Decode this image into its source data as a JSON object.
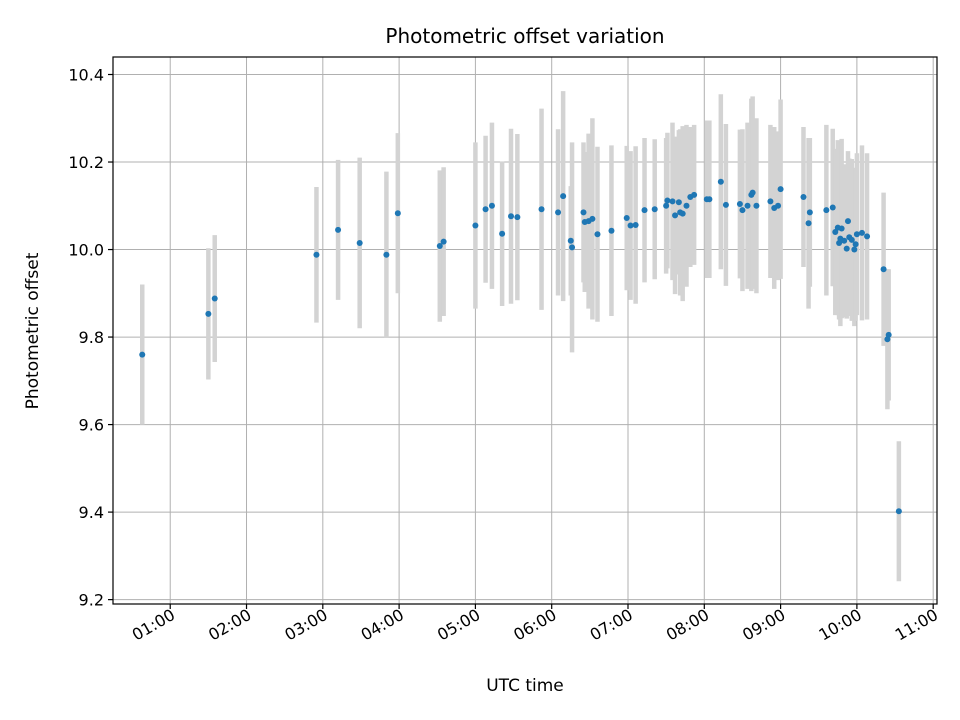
{
  "chart_data": {
    "type": "scatter",
    "title": "Photometric offset variation",
    "xlabel": "UTC time",
    "ylabel": "Photometric offset",
    "x_unit": "UTC time (HH:MM)",
    "xlim": [
      "00:15",
      "11:03"
    ],
    "ylim": [
      9.19,
      10.44
    ],
    "x_ticks": [
      "01:00",
      "02:00",
      "03:00",
      "04:00",
      "05:00",
      "06:00",
      "07:00",
      "08:00",
      "09:00",
      "10:00",
      "11:00"
    ],
    "y_ticks": [
      "9.2",
      "9.4",
      "9.6",
      "9.8",
      "10.0",
      "10.2",
      "10.4"
    ],
    "grid": true,
    "legend": "none",
    "colors": {
      "point": "#1f77b4",
      "errorbar": "#d3d3d3",
      "grid": "#b0b0b0"
    },
    "points": [
      {
        "t": "00:38",
        "y": 9.76,
        "err": 0.16
      },
      {
        "t": "01:30",
        "y": 9.853,
        "err": 0.15
      },
      {
        "t": "01:35",
        "y": 9.888,
        "err": 0.145
      },
      {
        "t": "02:55",
        "y": 9.988,
        "err": 0.155
      },
      {
        "t": "03:12",
        "y": 10.045,
        "err": 0.16
      },
      {
        "t": "03:29",
        "y": 10.015,
        "err": 0.195
      },
      {
        "t": "03:50",
        "y": 9.988,
        "err": 0.19
      },
      {
        "t": "03:59",
        "y": 10.083,
        "err": 0.183
      },
      {
        "t": "04:32",
        "y": 10.008,
        "err": 0.173
      },
      {
        "t": "04:35",
        "y": 10.018,
        "err": 0.17
      },
      {
        "t": "05:00",
        "y": 10.055,
        "err": 0.19
      },
      {
        "t": "05:08",
        "y": 10.092,
        "err": 0.168
      },
      {
        "t": "05:13",
        "y": 10.1,
        "err": 0.19
      },
      {
        "t": "05:21",
        "y": 10.036,
        "err": 0.165
      },
      {
        "t": "05:28",
        "y": 10.076,
        "err": 0.2
      },
      {
        "t": "05:33",
        "y": 10.074,
        "err": 0.19
      },
      {
        "t": "05:52",
        "y": 10.092,
        "err": 0.23
      },
      {
        "t": "06:05",
        "y": 10.085,
        "err": 0.19
      },
      {
        "t": "06:09",
        "y": 10.122,
        "err": 0.24
      },
      {
        "t": "06:15",
        "y": 10.02,
        "err": 0.125
      },
      {
        "t": "06:16",
        "y": 10.005,
        "err": 0.24
      },
      {
        "t": "06:25",
        "y": 10.085,
        "err": 0.16
      },
      {
        "t": "06:26",
        "y": 10.063,
        "err": 0.16
      },
      {
        "t": "06:29",
        "y": 10.065,
        "err": 0.2
      },
      {
        "t": "06:32",
        "y": 10.07,
        "err": 0.23
      },
      {
        "t": "06:36",
        "y": 10.035,
        "err": 0.2
      },
      {
        "t": "06:47",
        "y": 10.043,
        "err": 0.195
      },
      {
        "t": "06:59",
        "y": 10.072,
        "err": 0.165
      },
      {
        "t": "07:02",
        "y": 10.055,
        "err": 0.17
      },
      {
        "t": "07:06",
        "y": 10.056,
        "err": 0.18
      },
      {
        "t": "07:13",
        "y": 10.09,
        "err": 0.165
      },
      {
        "t": "07:21",
        "y": 10.092,
        "err": 0.16
      },
      {
        "t": "07:30",
        "y": 10.1,
        "err": 0.155
      },
      {
        "t": "07:31",
        "y": 10.112,
        "err": 0.155
      },
      {
        "t": "07:35",
        "y": 10.11,
        "err": 0.18
      },
      {
        "t": "07:37",
        "y": 10.078,
        "err": 0.18
      },
      {
        "t": "07:40",
        "y": 10.108,
        "err": 0.165
      },
      {
        "t": "07:41",
        "y": 10.085,
        "err": 0.19
      },
      {
        "t": "07:43",
        "y": 10.082,
        "err": 0.2
      },
      {
        "t": "07:46",
        "y": 10.1,
        "err": 0.185
      },
      {
        "t": "07:49",
        "y": 10.12,
        "err": 0.16
      },
      {
        "t": "07:52",
        "y": 10.125,
        "err": 0.16
      },
      {
        "t": "08:02",
        "y": 10.115,
        "err": 0.18
      },
      {
        "t": "08:04",
        "y": 10.115,
        "err": 0.18
      },
      {
        "t": "08:13",
        "y": 10.155,
        "err": 0.2
      },
      {
        "t": "08:17",
        "y": 10.102,
        "err": 0.185
      },
      {
        "t": "08:28",
        "y": 10.104,
        "err": 0.17
      },
      {
        "t": "08:30",
        "y": 10.09,
        "err": 0.185
      },
      {
        "t": "08:34",
        "y": 10.1,
        "err": 0.19
      },
      {
        "t": "08:37",
        "y": 10.125,
        "err": 0.22
      },
      {
        "t": "08:38",
        "y": 10.13,
        "err": 0.22
      },
      {
        "t": "08:41",
        "y": 10.1,
        "err": 0.2
      },
      {
        "t": "08:52",
        "y": 10.11,
        "err": 0.175
      },
      {
        "t": "08:55",
        "y": 10.095,
        "err": 0.185
      },
      {
        "t": "08:58",
        "y": 10.1,
        "err": 0.17
      },
      {
        "t": "09:00",
        "y": 10.138,
        "err": 0.205
      },
      {
        "t": "09:18",
        "y": 10.12,
        "err": 0.16
      },
      {
        "t": "09:22",
        "y": 10.06,
        "err": 0.195
      },
      {
        "t": "09:23",
        "y": 10.085,
        "err": 0.17
      },
      {
        "t": "09:36",
        "y": 10.09,
        "err": 0.195
      },
      {
        "t": "09:41",
        "y": 10.096,
        "err": 0.18
      },
      {
        "t": "09:43",
        "y": 10.04,
        "err": 0.19
      },
      {
        "t": "09:45",
        "y": 10.05,
        "err": 0.2
      },
      {
        "t": "09:46",
        "y": 10.015,
        "err": 0.175
      },
      {
        "t": "09:47",
        "y": 10.025,
        "err": 0.2
      },
      {
        "t": "09:48",
        "y": 10.048,
        "err": 0.205
      },
      {
        "t": "09:50",
        "y": 10.02,
        "err": 0.175
      },
      {
        "t": "09:52",
        "y": 10.002,
        "err": 0.16
      },
      {
        "t": "09:53",
        "y": 10.065,
        "err": 0.16
      },
      {
        "t": "09:54",
        "y": 10.028,
        "err": 0.18
      },
      {
        "t": "09:56",
        "y": 10.022,
        "err": 0.185
      },
      {
        "t": "09:58",
        "y": 10.0,
        "err": 0.175
      },
      {
        "t": "09:59",
        "y": 10.012,
        "err": 0.175
      },
      {
        "t": "10:00",
        "y": 10.035,
        "err": 0.185
      },
      {
        "t": "10:04",
        "y": 10.038,
        "err": 0.2
      },
      {
        "t": "10:08",
        "y": 10.03,
        "err": 0.19
      },
      {
        "t": "10:21",
        "y": 9.955,
        "err": 0.175
      },
      {
        "t": "10:24",
        "y": 9.795,
        "err": 0.16
      },
      {
        "t": "10:25",
        "y": 9.805,
        "err": 0.15
      },
      {
        "t": "10:33",
        "y": 9.402,
        "err": 0.16
      }
    ]
  }
}
